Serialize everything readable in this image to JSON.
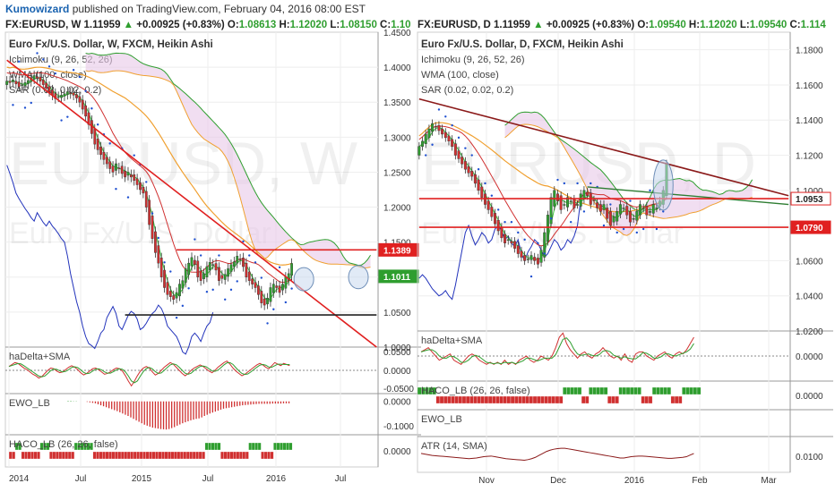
{
  "header": {
    "author": "Kumowizard",
    "text": "published on TradingView.com, February 04, 2016 08:00 EST"
  },
  "colors": {
    "up": "#2f9e2f",
    "down": "#d03030",
    "sma": "#2e7d32",
    "wma": "#f0a030",
    "kumo_fill": "#e8c8e8",
    "trend_red": "#e02020",
    "trend_maroon": "#8b1a1a",
    "line_blue": "#2233bb",
    "sar": "#1e4fd0",
    "ellipse_stroke": "#6f8fb8",
    "ellipse_fill": "#c8d8ee",
    "grid": "#eeeeee"
  },
  "chart_data": [
    {
      "type": "candlestick",
      "symbol_line": {
        "symbol": "FX:EURUSD, W",
        "price": "1.11959",
        "change": "+0.00925 (+0.83%)",
        "o_label": "O:",
        "o": "1.08613",
        "h_label": "H:",
        "h": "1.12020",
        "l_label": "L:",
        "l": "1.08150",
        "c_label": "C:",
        "c": "1.10"
      },
      "title": "Euro Fx/U.S. Dollar, W, FXCM, Heikin Ashi",
      "indicators": [
        "Ichimoku (9, 26, 52, 26)",
        "WMA (100, close)",
        "SAR (0.02, 0.02, 0.2)"
      ],
      "watermark_big": "EURUSD, W",
      "watermark_small": "Euro Fx/U.S. Dollar",
      "x_ticks": [
        "2014",
        "Jul",
        "2015",
        "Jul",
        "2016",
        "Jul"
      ],
      "ylim": [
        1.0,
        1.45
      ],
      "y_ticks": [
        "1.4500",
        "1.4000",
        "1.3500",
        "1.3000",
        "1.2500",
        "1.2000",
        "1.1500",
        "1.1000",
        "1.0500",
        "1.0000"
      ],
      "price_tags": [
        {
          "label": "1.1389",
          "value": 1.1389,
          "color": "#e02020",
          "style": "filled"
        },
        {
          "label": "1.1011",
          "value": 1.1011,
          "color": "#2f9e2f",
          "style": "filled"
        }
      ],
      "closes": [
        1.38,
        1.378,
        1.382,
        1.376,
        1.372,
        1.375,
        1.378,
        1.381,
        1.385,
        1.388,
        1.384,
        1.38,
        1.375,
        1.37,
        1.365,
        1.36,
        1.355,
        1.358,
        1.36,
        1.362,
        1.365,
        1.362,
        1.36,
        1.356,
        1.35,
        1.34,
        1.33,
        1.318,
        1.305,
        1.29,
        1.282,
        1.275,
        1.268,
        1.262,
        1.255,
        1.25,
        1.262,
        1.255,
        1.248,
        1.243,
        1.25,
        1.243,
        1.238,
        1.232,
        1.225,
        1.22,
        1.2,
        1.175,
        1.155,
        1.135,
        1.12,
        1.1,
        1.085,
        1.075,
        1.072,
        1.068,
        1.078,
        1.09,
        1.095,
        1.112,
        1.12,
        1.128,
        1.118,
        1.1,
        1.095,
        1.105,
        1.115,
        1.121,
        1.118,
        1.11,
        1.095,
        1.098,
        1.104,
        1.112,
        1.118,
        1.122,
        1.13,
        1.125,
        1.115,
        1.1,
        1.095,
        1.09,
        1.085,
        1.075,
        1.063,
        1.06,
        1.07,
        1.085,
        1.09,
        1.085,
        1.078,
        1.09,
        1.1,
        1.105,
        1.1196
      ],
      "trend_red": {
        "start_index": 0,
        "start_value": 1.41,
        "end_index": 122,
        "end_value": 1.0
      },
      "support_line": {
        "value": 1.046,
        "start_index": 39,
        "end_index": 122
      },
      "resistance_line": {
        "value": 1.1389,
        "start_index": 56,
        "end_index": 122
      },
      "ellipses": [
        {
          "index": 98,
          "value": 1.097
        },
        {
          "index": 116,
          "value": 1.1
        }
      ],
      "subpanes": [
        {
          "label": "haDelta+SMA",
          "type": "line",
          "y_ticks": [
            "0.0500",
            "0.0000",
            "-0.0500"
          ],
          "ylim": [
            -0.06,
            0.06
          ],
          "values": [
            0.01,
            0.015,
            0.02,
            0.018,
            0.012,
            0.006,
            0.002,
            -0.004,
            -0.01,
            -0.014,
            -0.02,
            -0.016,
            -0.008,
            0.0,
            0.006,
            0.004,
            -0.002,
            -0.006,
            -0.004,
            0.002,
            0.008,
            0.012,
            0.008,
            0.002,
            -0.006,
            -0.012,
            -0.008,
            -0.002,
            0.004,
            0.006,
            0.002,
            -0.004,
            -0.01,
            -0.008,
            -0.004,
            0.002,
            0.006,
            0.004,
            -0.002,
            -0.014,
            -0.028,
            -0.04,
            -0.028,
            -0.014,
            -0.002,
            0.006,
            0.01,
            0.006,
            -0.004,
            -0.012,
            -0.008,
            0.0,
            0.008,
            0.014,
            0.02,
            0.016,
            0.008,
            0.0,
            -0.008,
            -0.014,
            -0.008,
            0.0,
            0.006,
            0.01,
            0.014,
            0.01,
            0.004,
            -0.002,
            -0.006,
            0.0,
            0.008,
            0.014,
            0.02,
            0.024,
            0.016,
            0.006,
            -0.002,
            -0.008,
            -0.014,
            -0.01,
            -0.004,
            0.002,
            0.008,
            0.014,
            0.018,
            0.014,
            0.008,
            0.004,
            0.012,
            0.02,
            0.016,
            0.012,
            0.018,
            0.015,
            0.012
          ]
        },
        {
          "label": "EWO_LB",
          "type": "histogram",
          "y_ticks": [
            "0.0000",
            "-0.1000"
          ],
          "ylim": [
            -0.13,
            0.01
          ],
          "values": [
            0.002,
            0.002,
            0.001,
            0.001,
            0.0,
            0.0,
            0.0,
            -0.002,
            -0.004,
            -0.006,
            -0.008,
            -0.012,
            -0.016,
            -0.02,
            -0.024,
            -0.028,
            -0.032,
            -0.036,
            -0.04,
            -0.045,
            -0.05,
            -0.055,
            -0.06,
            -0.066,
            -0.072,
            -0.078,
            -0.084,
            -0.09,
            -0.096,
            -0.1,
            -0.104,
            -0.108,
            -0.11,
            -0.112,
            -0.114,
            -0.115,
            -0.116,
            -0.114,
            -0.11,
            -0.106,
            -0.1,
            -0.095,
            -0.09,
            -0.086,
            -0.082,
            -0.078,
            -0.075,
            -0.072,
            -0.07,
            -0.066,
            -0.06,
            -0.055,
            -0.05,
            -0.046,
            -0.042,
            -0.038,
            -0.034,
            -0.03,
            -0.028,
            -0.026,
            -0.024,
            -0.022,
            -0.02,
            -0.018,
            -0.016,
            -0.015,
            -0.014,
            -0.013,
            -0.012,
            -0.011,
            -0.01,
            -0.01,
            -0.01,
            -0.01,
            -0.01,
            -0.009,
            -0.009,
            -0.009,
            -0.009,
            -0.008,
            -0.008,
            -0.008
          ]
        },
        {
          "label": "HACO_LB (26, 26, false)",
          "type": "binary",
          "y_ticks": [
            "0.0000"
          ],
          "values": [
            0,
            0,
            1,
            1,
            0,
            0,
            0,
            0,
            0,
            0,
            1,
            1,
            1,
            0,
            0,
            0,
            0,
            0,
            0,
            0,
            0,
            1,
            1,
            1,
            1,
            1,
            1,
            0,
            0,
            0,
            0,
            0,
            0,
            0,
            0,
            0,
            0,
            0,
            0,
            0,
            0,
            0,
            0,
            0,
            0,
            0,
            0,
            0,
            0,
            0,
            0,
            0,
            0,
            0,
            0,
            0,
            0,
            0,
            0,
            0,
            0,
            0,
            0,
            1,
            1,
            1,
            1,
            1,
            0,
            0,
            0,
            0,
            0,
            0,
            0,
            0,
            0,
            1,
            1,
            1,
            1,
            0,
            0,
            0,
            0,
            1,
            1,
            1,
            1,
            1,
            1
          ]
        }
      ]
    },
    {
      "type": "candlestick",
      "symbol_line": {
        "symbol": "FX:EURUSD, D",
        "price": "1.11959",
        "change": "+0.00925 (+0.83%)",
        "o_label": "O:",
        "o": "1.09540",
        "h_label": "H:",
        "h": "1.12020",
        "l_label": "L:",
        "l": "1.09540",
        "c_label": "C:",
        "c": "1.114"
      },
      "title": "Euro Fx/U.S. Dollar, D, FXCM, Heikin Ashi",
      "indicators": [
        "Ichimoku (9, 26, 52, 26)",
        "WMA (100, close)",
        "SAR (0.02, 0.02, 0.2)"
      ],
      "watermark_big": "EURUSD, D",
      "watermark_small": "Euro Fx/U.S. Dollar",
      "x_ticks": [
        "Nov",
        "Dec",
        "2016",
        "Feb",
        "Mar"
      ],
      "ylim": [
        1.02,
        1.19
      ],
      "y_ticks": [
        "1.1800",
        "1.1600",
        "1.1400",
        "1.1200",
        "1.1000",
        "1.0800",
        "1.0600",
        "1.0400",
        "1.0200"
      ],
      "price_tags": [
        {
          "label": "1.0953",
          "value": 1.0953,
          "color": "#e02020",
          "style": "outline"
        },
        {
          "label": "1.0790",
          "value": 1.079,
          "color": "#e02020",
          "style": "filled"
        }
      ],
      "closes": [
        1.125,
        1.128,
        1.132,
        1.135,
        1.138,
        1.136,
        1.134,
        1.132,
        1.13,
        1.128,
        1.125,
        1.12,
        1.118,
        1.115,
        1.112,
        1.11,
        1.108,
        1.104,
        1.1,
        1.096,
        1.092,
        1.089,
        1.085,
        1.081,
        1.077,
        1.073,
        1.07,
        1.072,
        1.07,
        1.067,
        1.064,
        1.062,
        1.06,
        1.061,
        1.063,
        1.06,
        1.058,
        1.066,
        1.076,
        1.086,
        1.096,
        1.1,
        1.094,
        1.089,
        1.092,
        1.096,
        1.094,
        1.09,
        1.092,
        1.098,
        1.1,
        1.097,
        1.092,
        1.094,
        1.09,
        1.088,
        1.092,
        1.084,
        1.08,
        1.085,
        1.088,
        1.092,
        1.09,
        1.086,
        1.082,
        1.084,
        1.088,
        1.092,
        1.09,
        1.086,
        1.088,
        1.092,
        1.09,
        1.094,
        1.1,
        1.115
      ],
      "trend_maroon": {
        "start_index": 0,
        "start_value": 1.152,
        "end_index": 112,
        "end_value": 1.097
      },
      "trend_green": {
        "start_index": 51,
        "start_value": 1.102,
        "end_index": 112,
        "end_value": 1.092
      },
      "resistance_line": {
        "value": 1.0953,
        "start_index": 0,
        "end_index": 112
      },
      "support_line": {
        "value": 1.079,
        "start_index": 0,
        "end_index": 112
      },
      "ellipses": [
        {
          "index": 74,
          "value": 1.103
        }
      ],
      "subpanes": [
        {
          "label": "haDelta+SMA",
          "type": "line",
          "y_ticks": [
            "0.0000"
          ],
          "ylim": [
            -0.012,
            0.012
          ],
          "values": [
            0.002,
            0.003,
            0.004,
            0.002,
            0.0,
            -0.002,
            -0.001,
            0.0,
            0.001,
            -0.002,
            -0.003,
            -0.004,
            -0.002,
            0.0,
            0.001,
            0.0,
            -0.002,
            -0.003,
            -0.004,
            -0.003,
            -0.004,
            -0.003,
            -0.004,
            -0.002,
            -0.004,
            -0.003,
            -0.004,
            -0.002,
            -0.001,
            0.0,
            -0.002,
            -0.003,
            -0.002,
            0.0,
            -0.001,
            -0.002,
            0.0,
            0.004,
            0.009,
            0.011,
            0.006,
            0.003,
            0.001,
            -0.001,
            0.001,
            0.002,
            0.0,
            -0.001,
            0.001,
            0.002,
            0.004,
            0.002,
            0.0,
            -0.001,
            0.0,
            -0.002,
            0.001,
            -0.002,
            -0.003,
            0.001,
            0.002,
            0.002,
            0.0,
            -0.001,
            -0.002,
            0.0,
            0.001,
            0.002,
            0.0,
            -0.001,
            0.001,
            0.002,
            0.001,
            0.003,
            0.006,
            0.009
          ]
        },
        {
          "label": "HACO_LB (26, 26, false)",
          "type": "binary",
          "y_ticks": [
            "0.0000"
          ],
          "values": [
            1,
            1,
            1,
            1,
            1,
            0,
            0,
            0,
            0,
            0,
            0,
            0,
            0,
            0,
            0,
            0,
            0,
            0,
            0,
            0,
            0,
            0,
            0,
            0,
            0,
            0,
            0,
            0,
            0,
            0,
            0,
            0,
            0,
            0,
            0,
            0,
            0,
            0,
            0,
            1,
            1,
            1,
            1,
            1,
            0,
            0,
            1,
            1,
            1,
            1,
            1,
            0,
            0,
            0,
            1,
            1,
            1,
            1,
            1,
            1,
            0,
            0,
            0,
            1,
            1,
            1,
            1,
            1,
            0,
            0,
            0,
            1,
            1,
            1,
            1,
            1
          ]
        },
        {
          "label": "EWO_LB",
          "type": "line",
          "y_ticks": []
        },
        {
          "label": "ATR (14, SMA)",
          "type": "line",
          "y_ticks": [
            "0.0100"
          ],
          "ylim": [
            0.005,
            0.016
          ],
          "values": [
            0.0108,
            0.0106,
            0.0104,
            0.0102,
            0.0101,
            0.01,
            0.0099,
            0.0098,
            0.0097,
            0.0096,
            0.0095,
            0.0094,
            0.0093,
            0.0092,
            0.0093,
            0.0094,
            0.0096,
            0.0098,
            0.0099,
            0.01,
            0.0098,
            0.0096,
            0.0094,
            0.0092,
            0.0091,
            0.009,
            0.0089,
            0.0088,
            0.0087,
            0.0089,
            0.0092,
            0.0096,
            0.0102,
            0.0108,
            0.0114,
            0.0118,
            0.0121,
            0.0123,
            0.0124,
            0.0124,
            0.0122,
            0.012,
            0.0118,
            0.0116,
            0.0114,
            0.0112,
            0.011,
            0.0108,
            0.0106,
            0.0104,
            0.0102,
            0.01,
            0.0098,
            0.0096,
            0.0094,
            0.0094,
            0.0096,
            0.0098,
            0.0099,
            0.01,
            0.01,
            0.0099,
            0.0098,
            0.0097,
            0.0096,
            0.0095,
            0.0094,
            0.0093,
            0.0093,
            0.0094,
            0.0095,
            0.0096,
            0.0098,
            0.0103,
            0.0108
          ]
        }
      ]
    }
  ]
}
